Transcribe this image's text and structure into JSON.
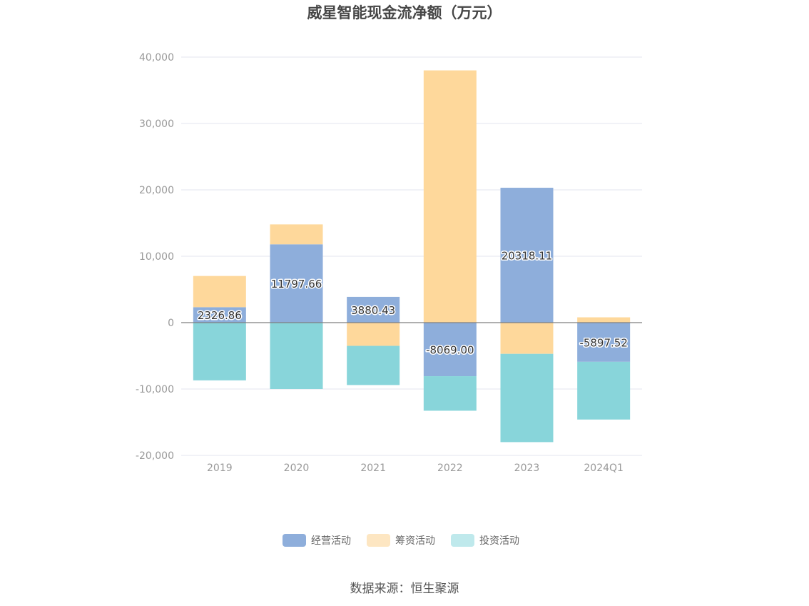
{
  "chart_data": {
    "type": "bar",
    "stacked": true,
    "title": "威星智能现金流净额（万元）",
    "categories": [
      "2019",
      "2020",
      "2021",
      "2022",
      "2023",
      "2024Q1"
    ],
    "series": [
      {
        "name": "经营活动",
        "color": "#8eaedb",
        "values": [
          2326.86,
          11797.66,
          3880.43,
          -8069.0,
          20318.11,
          -5897.52
        ],
        "labels": [
          "2326.86",
          "11797.66",
          "3880.43",
          "-8069.00",
          "20318.11",
          "-5897.52"
        ]
      },
      {
        "name": "筹资活动",
        "color": "#fed89b",
        "legend_color": "#fde6c2",
        "values": [
          4700,
          3000,
          -3500,
          38000,
          -4700,
          800
        ]
      },
      {
        "name": "投资活动",
        "color": "#88d5da",
        "legend_color": "#bfe9ec",
        "values": [
          -8700,
          -10000,
          -5900,
          -5200,
          -13300,
          -8700
        ]
      }
    ],
    "ylim": [
      -20000,
      40000
    ],
    "yticks": [
      -20000,
      -10000,
      0,
      10000,
      20000,
      30000,
      40000
    ],
    "ytick_labels": [
      "-20,000",
      "-10,000",
      "0",
      "10,000",
      "20,000",
      "30,000",
      "40,000"
    ],
    "grid": true,
    "legend_position": "bottom"
  },
  "footer": {
    "source": "数据来源：恒生聚源"
  }
}
